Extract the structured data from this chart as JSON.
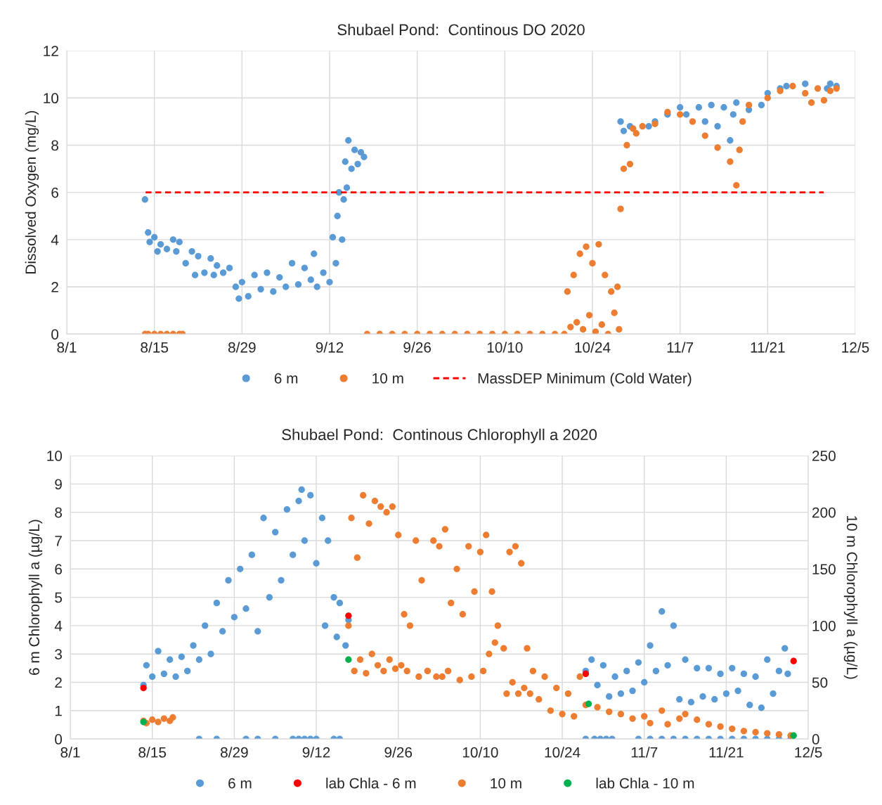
{
  "chart_data": [
    {
      "type": "scatter",
      "title": "Shubael Pond:  Continous DO 2020",
      "ylabel": "Dissolved Oxygen (mg/L)",
      "xlim": [
        "2020-08-01",
        "2020-12-05"
      ],
      "xticks": [
        {
          "value": "2020-08-01",
          "label": "8/1"
        },
        {
          "value": "2020-08-15",
          "label": "8/15"
        },
        {
          "value": "2020-08-29",
          "label": "8/29"
        },
        {
          "value": "2020-09-12",
          "label": "9/12"
        },
        {
          "value": "2020-09-26",
          "label": "9/26"
        },
        {
          "value": "2020-10-10",
          "label": "10/10"
        },
        {
          "value": "2020-10-24",
          "label": "10/24"
        },
        {
          "value": "2020-11-07",
          "label": "11/7"
        },
        {
          "value": "2020-11-21",
          "label": "11/21"
        },
        {
          "value": "2020-12-05",
          "label": "12/5"
        }
      ],
      "ylim": [
        0,
        12
      ],
      "yticks": [
        0,
        2,
        4,
        6,
        8,
        10,
        12
      ],
      "grid": true,
      "legend": "bottom",
      "marker": "circle",
      "ref_lines": [
        {
          "axis": "y",
          "value": 6,
          "label": "MassDEP Minimum (Cold Water)",
          "color": "#ff0000",
          "line_style": "dashed"
        }
      ],
      "series": [
        {
          "name": "6 m",
          "color": "#5b9bd5",
          "x": [
            "2020-08-13T12:00",
            "2020-08-14T00:00",
            "2020-08-14T06:00",
            "2020-08-15",
            "2020-08-15T12:00",
            "2020-08-16",
            "2020-08-17",
            "2020-08-18",
            "2020-08-18T12:00",
            "2020-08-19",
            "2020-08-20",
            "2020-08-21",
            "2020-08-21T12:00",
            "2020-08-22",
            "2020-08-23",
            "2020-08-24",
            "2020-08-24T12:00",
            "2020-08-25",
            "2020-08-26",
            "2020-08-27",
            "2020-08-28",
            "2020-08-28T12:00",
            "2020-08-29",
            "2020-08-30",
            "2020-08-31",
            "2020-09-01",
            "2020-09-02",
            "2020-09-03",
            "2020-09-04",
            "2020-09-05",
            "2020-09-06",
            "2020-09-07",
            "2020-09-08",
            "2020-09-09",
            "2020-09-09T12:00",
            "2020-09-10",
            "2020-09-11",
            "2020-09-12",
            "2020-09-12T12:00",
            "2020-09-13",
            "2020-09-13T06:00",
            "2020-09-13T12:00",
            "2020-09-14",
            "2020-09-14T06:00",
            "2020-09-14T12:00",
            "2020-09-14T18:00",
            "2020-09-15",
            "2020-09-15T12:00",
            "2020-09-16",
            "2020-09-16T12:00",
            "2020-09-17",
            "2020-09-17T12:00",
            "2020-10-28T12:00",
            "2020-10-29",
            "2020-10-30",
            "2020-11-02",
            "2020-11-03",
            "2020-11-05",
            "2020-11-07",
            "2020-11-08",
            "2020-11-10",
            "2020-11-11",
            "2020-11-12",
            "2020-11-13",
            "2020-11-14",
            "2020-11-15",
            "2020-11-15T12:00",
            "2020-11-16",
            "2020-11-18",
            "2020-11-20",
            "2020-11-21",
            "2020-11-23",
            "2020-11-24",
            "2020-11-27",
            "2020-11-30T12:00",
            "2020-12-01",
            "2020-12-02"
          ],
          "values": [
            5.7,
            4.3,
            3.9,
            4.1,
            3.5,
            3.8,
            3.6,
            4.0,
            3.5,
            3.9,
            3.0,
            3.5,
            2.5,
            3.3,
            2.6,
            3.2,
            2.5,
            2.9,
            2.6,
            2.8,
            2.0,
            1.5,
            2.2,
            1.6,
            2.5,
            1.9,
            2.6,
            1.8,
            2.4,
            2.0,
            3.0,
            2.1,
            2.8,
            2.3,
            3.4,
            2.0,
            2.6,
            2.2,
            4.1,
            3.0,
            5.0,
            6.0,
            4.0,
            5.7,
            7.3,
            6.2,
            8.2,
            7.0,
            7.8,
            7.2,
            7.7,
            7.5,
            9.0,
            8.6,
            8.8,
            8.8,
            9.0,
            9.3,
            9.6,
            9.3,
            9.6,
            9.0,
            9.7,
            8.8,
            9.6,
            8.2,
            9.3,
            9.8,
            9.5,
            9.7,
            10.2,
            10.4,
            10.5,
            10.6,
            10.4,
            10.6,
            10.5
          ]
        },
        {
          "name": "10 m",
          "color": "#ed7d31",
          "x": [
            "2020-08-13T12:00",
            "2020-08-14",
            "2020-08-15",
            "2020-08-16",
            "2020-08-17",
            "2020-08-18",
            "2020-08-19",
            "2020-08-19T12:00",
            "2020-09-18",
            "2020-09-20",
            "2020-09-22",
            "2020-09-24",
            "2020-09-26",
            "2020-09-28",
            "2020-09-30",
            "2020-10-02",
            "2020-10-04",
            "2020-10-06",
            "2020-10-08",
            "2020-10-10",
            "2020-10-12",
            "2020-10-14",
            "2020-10-16",
            "2020-10-18",
            "2020-10-19T12:00",
            "2020-10-20",
            "2020-10-20T12:00",
            "2020-10-21",
            "2020-10-21T12:00",
            "2020-10-22",
            "2020-10-22T12:00",
            "2020-10-23",
            "2020-10-23T12:00",
            "2020-10-24",
            "2020-10-24T12:00",
            "2020-10-25",
            "2020-10-25T12:00",
            "2020-10-26",
            "2020-10-26T12:00",
            "2020-10-27",
            "2020-10-27T12:00",
            "2020-10-28",
            "2020-10-28T06:00",
            "2020-10-28T12:00",
            "2020-10-29",
            "2020-10-29T12:00",
            "2020-10-30",
            "2020-10-30T12:00",
            "2020-10-31",
            "2020-11-01",
            "2020-11-03",
            "2020-11-05",
            "2020-11-07",
            "2020-11-09",
            "2020-11-11",
            "2020-11-13",
            "2020-11-15",
            "2020-11-16",
            "2020-11-16T12:00",
            "2020-11-17",
            "2020-11-18",
            "2020-11-21",
            "2020-11-23",
            "2020-11-25",
            "2020-11-27",
            "2020-11-28",
            "2020-11-29",
            "2020-11-30",
            "2020-12-01",
            "2020-12-02"
          ],
          "values": [
            0,
            0,
            0,
            0,
            0,
            0,
            0,
            0,
            0,
            0,
            0,
            0,
            0,
            0,
            0,
            0,
            0,
            0,
            0,
            0,
            0,
            0,
            0,
            0,
            0,
            1.8,
            0.3,
            2.5,
            0.5,
            3.4,
            0.2,
            3.7,
            0.8,
            3.0,
            0.1,
            3.8,
            0.4,
            2.5,
            0,
            1.8,
            0.9,
            2.0,
            0.2,
            5.3,
            7.0,
            8.0,
            7.2,
            8.7,
            8.5,
            8.8,
            8.9,
            9.4,
            9.3,
            9.0,
            8.4,
            7.9,
            7.3,
            6.3,
            7.8,
            9.0,
            9.7,
            10.0,
            10.3,
            10.5,
            10.2,
            9.8,
            10.4,
            9.9,
            10.3,
            10.4
          ]
        }
      ]
    },
    {
      "type": "scatter",
      "title": "Shubael Pond:  Continous Chlorophyll a 2020",
      "ylabel": "6 m Chlorophyll a (µg/L)",
      "y2label": "10 m Chlorophyll a (µg/L)",
      "xlim": [
        "2020-08-01",
        "2020-12-05"
      ],
      "xticks": [
        {
          "value": "2020-08-01",
          "label": "8/1"
        },
        {
          "value": "2020-08-15",
          "label": "8/15"
        },
        {
          "value": "2020-08-29",
          "label": "8/29"
        },
        {
          "value": "2020-09-12",
          "label": "9/12"
        },
        {
          "value": "2020-09-26",
          "label": "9/26"
        },
        {
          "value": "2020-10-10",
          "label": "10/10"
        },
        {
          "value": "2020-10-24",
          "label": "10/24"
        },
        {
          "value": "2020-11-07",
          "label": "11/7"
        },
        {
          "value": "2020-11-21",
          "label": "11/21"
        },
        {
          "value": "2020-12-05",
          "label": "12/5"
        }
      ],
      "ylim": [
        0,
        10
      ],
      "yticks": [
        0,
        1,
        2,
        3,
        4,
        5,
        6,
        7,
        8,
        9,
        10
      ],
      "y2lim": [
        0,
        250
      ],
      "y2ticks": [
        0,
        50,
        100,
        150,
        200,
        250
      ],
      "grid": true,
      "legend": "bottom",
      "marker": "circle",
      "series": [
        {
          "name": "6 m",
          "color": "#5b9bd5",
          "x": [
            "2020-08-13T12:00",
            "2020-08-14",
            "2020-08-15",
            "2020-08-16",
            "2020-08-17",
            "2020-08-18",
            "2020-08-19",
            "2020-08-20",
            "2020-08-21",
            "2020-08-22",
            "2020-08-23",
            "2020-08-24",
            "2020-08-25",
            "2020-08-26",
            "2020-08-27",
            "2020-08-28",
            "2020-08-29",
            "2020-08-30",
            "2020-08-31",
            "2020-09-01",
            "2020-09-02",
            "2020-09-03",
            "2020-09-04",
            "2020-09-05",
            "2020-09-06",
            "2020-09-07",
            "2020-09-08",
            "2020-09-09",
            "2020-09-09T12:00",
            "2020-09-10",
            "2020-09-11",
            "2020-09-12",
            "2020-09-13",
            "2020-09-13T12:00",
            "2020-09-14",
            "2020-09-15",
            "2020-09-15T12:00",
            "2020-09-16",
            "2020-09-17",
            "2020-09-17T12:00",
            "2020-08-23",
            "2020-08-26",
            "2020-08-31",
            "2020-09-02",
            "2020-09-05",
            "2020-09-08",
            "2020-09-09",
            "2020-09-10",
            "2020-09-11",
            "2020-09-12",
            "2020-09-15",
            "2020-09-16",
            "2020-10-28",
            "2020-10-29",
            "2020-10-30",
            "2020-10-31",
            "2020-11-01",
            "2020-11-02",
            "2020-11-03",
            "2020-11-04",
            "2020-11-05",
            "2020-11-06",
            "2020-11-07",
            "2020-11-08",
            "2020-11-09",
            "2020-11-10",
            "2020-11-11",
            "2020-11-12",
            "2020-11-13",
            "2020-11-14",
            "2020-11-15",
            "2020-11-16",
            "2020-11-17",
            "2020-11-18",
            "2020-11-19",
            "2020-11-20",
            "2020-11-21",
            "2020-11-22",
            "2020-11-23",
            "2020-11-24",
            "2020-11-25",
            "2020-11-26",
            "2020-11-27",
            "2020-11-28",
            "2020-11-29",
            "2020-11-30",
            "2020-12-01",
            "2020-12-01T12:00",
            "2020-10-28",
            "2020-10-29T12:00",
            "2020-10-30T12:00",
            "2020-10-31T12:00",
            "2020-11-01T12:00",
            "2020-11-06",
            "2020-11-08",
            "2020-11-10",
            "2020-11-12",
            "2020-11-14",
            "2020-11-16",
            "2020-11-18",
            "2020-11-20",
            "2020-11-22",
            "2020-11-24",
            "2020-11-26",
            "2020-11-28",
            "2020-11-30",
            "2020-12-02"
          ],
          "values": [
            1.9,
            2.6,
            2.2,
            3.1,
            2.3,
            2.8,
            2.2,
            2.9,
            2.4,
            3.3,
            2.8,
            4.0,
            3.0,
            4.8,
            3.8,
            5.6,
            4.3,
            6.0,
            4.6,
            6.5,
            3.8,
            7.8,
            5.0,
            7.3,
            5.6,
            8.1,
            6.5,
            8.4,
            8.8,
            7.0,
            8.6,
            6.2,
            7.8,
            4.0,
            7.0,
            5.0,
            3.6,
            4.8,
            3.3,
            4.2,
            0,
            0,
            0,
            0,
            0,
            0,
            0,
            0,
            0,
            0,
            0,
            0,
            2.4,
            2.8,
            1.9,
            2.6,
            1.5,
            2.2,
            1.6,
            2.4,
            1.7,
            2.7,
            2.0,
            3.3,
            2.4,
            4.5,
            2.6,
            4.0,
            1.4,
            2.8,
            1.3,
            2.5,
            1.5,
            2.5,
            1.4,
            2.3,
            1.6,
            2.5,
            1.7,
            2.3,
            1.2,
            2.2,
            1.1,
            2.8,
            1.6,
            2.4,
            3.2,
            2.3,
            0,
            0,
            0,
            0,
            0,
            0,
            0,
            0,
            0,
            0,
            0,
            0,
            0,
            0,
            0,
            0,
            0,
            0,
            0
          ]
        },
        {
          "name": "lab Chla - 6 m",
          "color": "#ff0000",
          "x": [
            "2020-08-13T12:00",
            "2020-09-17T12:00",
            "2020-10-28",
            "2020-12-02T12:00"
          ],
          "values": [
            1.8,
            4.35,
            2.3,
            2.75
          ]
        },
        {
          "name": "10 m",
          "color": "#ed7d31",
          "axis": "y2",
          "x": [
            "2020-08-13T12:00",
            "2020-08-14",
            "2020-08-15",
            "2020-08-16",
            "2020-08-17",
            "2020-08-18",
            "2020-08-18T12:00",
            "2020-09-17T12:00",
            "2020-09-18",
            "2020-09-18T12:00",
            "2020-09-19",
            "2020-09-19T12:00",
            "2020-09-20",
            "2020-09-20T12:00",
            "2020-09-21",
            "2020-09-21T12:00",
            "2020-09-22",
            "2020-09-22T12:00",
            "2020-09-23",
            "2020-09-23T12:00",
            "2020-09-24",
            "2020-09-24T12:00",
            "2020-09-25",
            "2020-09-25T12:00",
            "2020-09-26",
            "2020-09-26T12:00",
            "2020-09-27",
            "2020-09-27T12:00",
            "2020-09-28",
            "2020-09-29",
            "2020-09-29T12:00",
            "2020-09-30",
            "2020-10-01",
            "2020-10-02",
            "2020-10-02T12:00",
            "2020-10-03",
            "2020-10-03T12:00",
            "2020-10-04",
            "2020-10-04T12:00",
            "2020-10-05",
            "2020-10-06",
            "2020-10-06T12:00",
            "2020-10-07",
            "2020-10-08",
            "2020-10-08T12:00",
            "2020-10-09",
            "2020-10-10",
            "2020-10-10T12:00",
            "2020-10-11",
            "2020-10-11T12:00",
            "2020-10-12",
            "2020-10-12T12:00",
            "2020-10-13",
            "2020-10-14",
            "2020-10-14T12:00",
            "2020-10-15",
            "2020-10-15T12:00",
            "2020-10-16",
            "2020-10-16T12:00",
            "2020-10-17",
            "2020-10-17T12:00",
            "2020-10-18",
            "2020-10-18T12:00",
            "2020-10-19",
            "2020-10-20",
            "2020-10-21",
            "2020-10-22",
            "2020-10-23",
            "2020-10-24",
            "2020-10-25",
            "2020-10-26",
            "2020-10-27",
            "2020-10-28",
            "2020-10-30",
            "2020-11-01",
            "2020-11-03",
            "2020-11-05",
            "2020-11-07",
            "2020-11-08",
            "2020-11-10",
            "2020-11-11",
            "2020-11-13",
            "2020-11-14",
            "2020-11-16",
            "2020-11-18",
            "2020-11-20",
            "2020-11-22",
            "2020-11-24",
            "2020-11-26",
            "2020-11-28",
            "2020-11-30",
            "2020-12-02"
          ],
          "values": [
            16,
            14,
            17,
            15,
            18,
            16,
            19,
            100,
            195,
            60,
            160,
            70,
            215,
            58,
            190,
            75,
            210,
            65,
            205,
            60,
            200,
            70,
            205,
            62,
            180,
            65,
            110,
            60,
            100,
            175,
            55,
            140,
            60,
            175,
            55,
            170,
            55,
            185,
            60,
            120,
            150,
            52,
            110,
            170,
            55,
            130,
            165,
            60,
            180,
            75,
            130,
            85,
            100,
            80,
            40,
            165,
            50,
            170,
            40,
            155,
            45,
            80,
            40,
            60,
            35,
            55,
            25,
            45,
            22,
            40,
            20,
            55,
            30,
            28,
            24,
            22,
            18,
            20,
            14,
            25,
            13,
            18,
            22,
            17,
            13,
            11,
            9,
            7,
            6,
            5,
            4,
            3
          ]
        },
        {
          "name": "lab Chla - 10 m",
          "color": "#00b050",
          "axis": "y2",
          "x": [
            "2020-08-13T12:00",
            "2020-09-17T12:00",
            "2020-10-28T12:00",
            "2020-12-02T12:00"
          ],
          "values": [
            15,
            70,
            31,
            3
          ]
        }
      ]
    }
  ]
}
